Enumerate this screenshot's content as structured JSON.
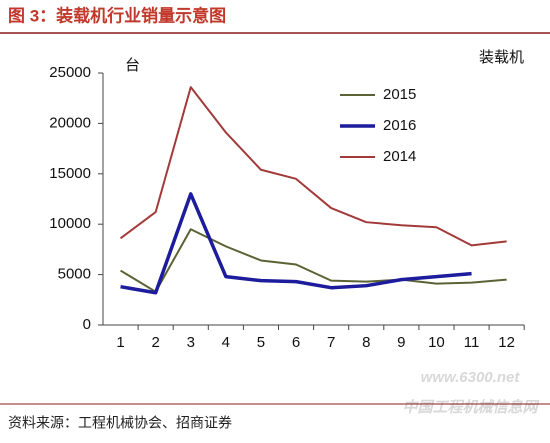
{
  "chart_data": {
    "type": "line",
    "title": "图 3：装载机行业销量示意图",
    "unit_label": "台",
    "series_label": "装载机",
    "source": "资料来源：工程机械协会、招商证券",
    "watermark": [
      "www.6300.net",
      "中国工程机械信息网"
    ],
    "categories": [
      "1",
      "2",
      "3",
      "4",
      "5",
      "6",
      "7",
      "8",
      "9",
      "10",
      "11",
      "12"
    ],
    "series": [
      {
        "name": "2015",
        "color": "#5b6334",
        "values": [
          5400,
          3300,
          9500,
          7800,
          6400,
          6000,
          4400,
          4300,
          4500,
          4100,
          4200,
          4500
        ]
      },
      {
        "name": "2016",
        "color": "#1c1c9c",
        "values": [
          3800,
          3200,
          13000,
          4800,
          4400,
          4300,
          3700,
          3900,
          4500,
          4800,
          5100,
          null
        ]
      },
      {
        "name": "2014",
        "color": "#a33a3a",
        "values": [
          8600,
          11200,
          23600,
          19100,
          15400,
          14500,
          11600,
          10200,
          9900,
          9700,
          7900,
          8300
        ]
      }
    ],
    "ylim": [
      0,
      25000
    ],
    "yticks": [
      0,
      5000,
      10000,
      15000,
      20000,
      25000
    ]
  }
}
